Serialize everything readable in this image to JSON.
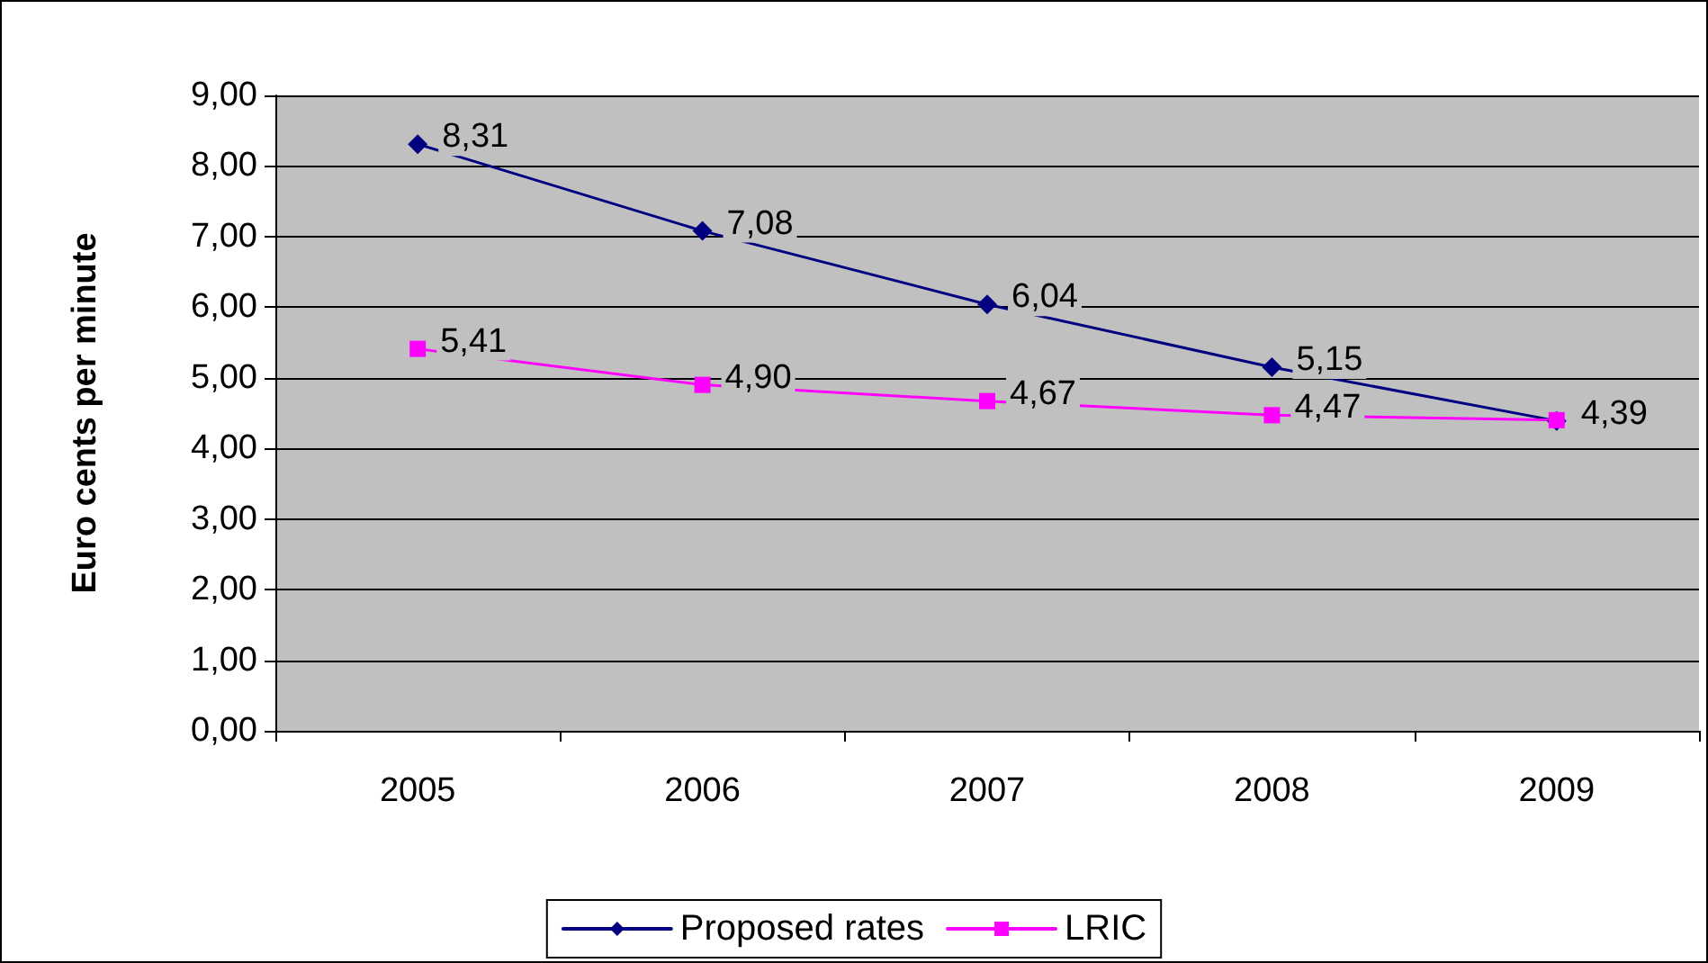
{
  "chart_data": {
    "type": "line",
    "ylabel": "Euro cents per minute",
    "categories": [
      "2005",
      "2006",
      "2007",
      "2008",
      "2009"
    ],
    "series": [
      {
        "name": "Proposed rates",
        "color": "#000080",
        "marker": "diamond",
        "values": [
          8.31,
          7.08,
          6.04,
          5.15,
          4.39
        ],
        "value_labels": [
          "8,31",
          "7,08",
          "6,04",
          "5,15",
          "4,39"
        ]
      },
      {
        "name": "LRIC",
        "color": "#ff00ff",
        "marker": "square",
        "values": [
          5.41,
          4.9,
          4.67,
          4.47,
          4.4
        ],
        "value_labels": [
          "5,41",
          "4,90",
          "4,67",
          "4,47",
          null
        ]
      }
    ],
    "ylim": [
      0,
      9
    ],
    "yticks": [
      {
        "value": 0,
        "label": "0,00"
      },
      {
        "value": 1,
        "label": "1,00"
      },
      {
        "value": 2,
        "label": "2,00"
      },
      {
        "value": 3,
        "label": "3,00"
      },
      {
        "value": 4,
        "label": "4,00"
      },
      {
        "value": 5,
        "label": "5,00"
      },
      {
        "value": 6,
        "label": "6,00"
      },
      {
        "value": 7,
        "label": "7,00"
      },
      {
        "value": 8,
        "label": "8,00"
      },
      {
        "value": 9,
        "label": "9,00"
      }
    ],
    "grid": "y",
    "legend": "bottom"
  }
}
